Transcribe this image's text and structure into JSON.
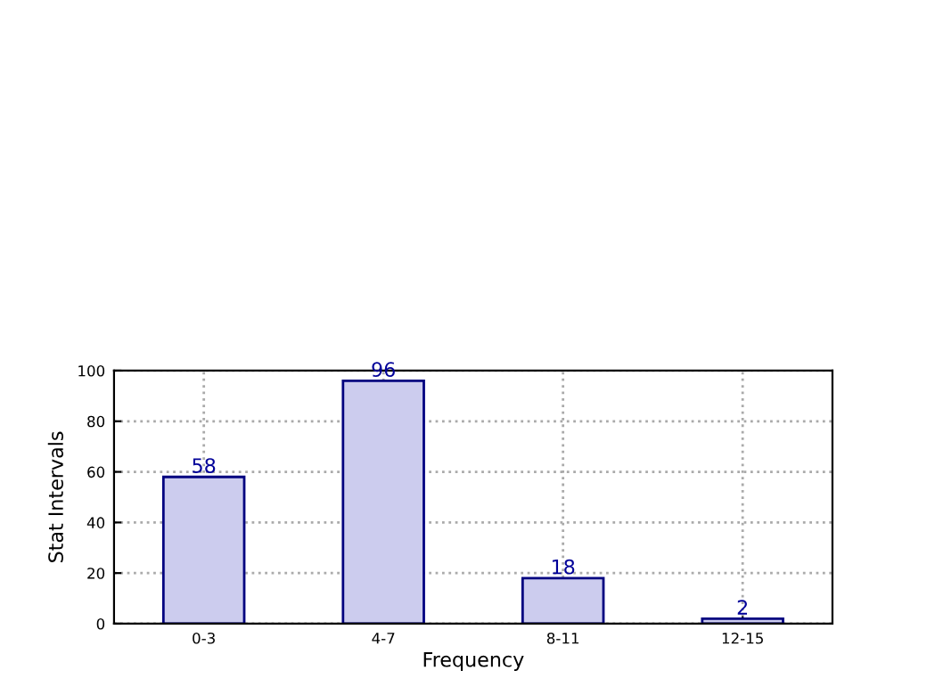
{
  "chart_data": {
    "type": "bar",
    "xlabel": "Frequency",
    "ylabel": "Stat Intervals",
    "categories": [
      "0-3",
      "4-7",
      "8-11",
      "12-15"
    ],
    "values": [
      58,
      96,
      18,
      2
    ],
    "color": "#ccccee",
    "ylim": [
      0,
      100
    ],
    "yticks": [
      0,
      20,
      40,
      60,
      80,
      100
    ],
    "grid": true,
    "data_labels": true
  }
}
